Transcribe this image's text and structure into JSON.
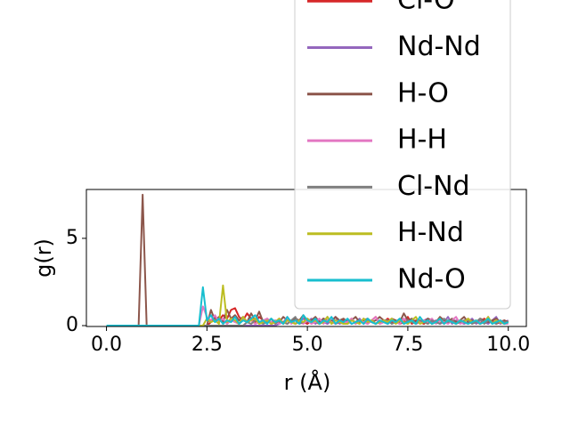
{
  "chart_data": {
    "type": "line",
    "xlabel": "r (Å)",
    "ylabel": "g(r)",
    "xlim": [
      -0.5,
      10.45
    ],
    "ylim": [
      -0.05,
      7.8
    ],
    "xticks": [
      {
        "value": 0,
        "label": "0.0"
      },
      {
        "value": 2.5,
        "label": "2.5"
      },
      {
        "value": 5,
        "label": "5.0"
      },
      {
        "value": 7.5,
        "label": "7.5"
      },
      {
        "value": 10,
        "label": "10.0"
      }
    ],
    "yticks": [
      0,
      5
    ],
    "legend": "upper right",
    "grid": false,
    "x": [
      0,
      0.1,
      0.2,
      0.3,
      0.4,
      0.5,
      0.6,
      0.7,
      0.8,
      0.9,
      1,
      1.1,
      1.2,
      1.3,
      1.4,
      1.5,
      1.6,
      1.7,
      1.8,
      1.9,
      2,
      2.1,
      2.2,
      2.3,
      2.4,
      2.5,
      2.6,
      2.7,
      2.8,
      2.9,
      3,
      3.1,
      3.2,
      3.3,
      3.4,
      3.5,
      3.6,
      3.7,
      3.8,
      3.9,
      4,
      4.1,
      4.2,
      4.3,
      4.4,
      4.5,
      4.6,
      4.7,
      4.8,
      4.9,
      5,
      5.1,
      5.2,
      5.3,
      5.4,
      5.5,
      5.6,
      5.7,
      5.8,
      5.9,
      6,
      6.1,
      6.2,
      6.3,
      6.4,
      6.5,
      6.6,
      6.7,
      6.8,
      6.9,
      7,
      7.1,
      7.2,
      7.3,
      7.4,
      7.5,
      7.6,
      7.7,
      7.8,
      7.9,
      8,
      8.1,
      8.2,
      8.3,
      8.4,
      8.5,
      8.6,
      8.7,
      8.8,
      8.9,
      9,
      9.1,
      9.2,
      9.3,
      9.4,
      9.5,
      9.6,
      9.7,
      9.8,
      9.9,
      10
    ],
    "series": [
      {
        "name": "Cl-O",
        "color": "#d62728",
        "values": [
          0,
          0,
          0,
          0,
          0,
          0,
          0,
          0,
          0,
          0,
          0,
          0,
          0,
          0,
          0,
          0,
          0,
          0,
          0,
          0,
          0,
          0,
          0,
          0,
          0,
          0,
          0.2,
          0.5,
          0.3,
          0.6,
          0.4,
          0.9,
          1.0,
          0.5,
          0.3,
          0.7,
          0.4,
          0.2,
          0.5,
          0.3,
          0.3,
          0.1,
          0.2,
          0.4,
          0.1,
          0.3,
          0.2,
          0.1,
          0.3,
          0.2,
          0.1,
          0.3,
          0.2,
          0.1,
          0.4,
          0.2,
          0.3,
          0.1,
          0.2,
          0.3,
          0.2,
          0.4,
          0.1,
          0.3,
          0.2,
          0.1,
          0.3,
          0.5,
          0.1,
          0.2,
          0.4,
          0.2,
          0.3,
          0.1,
          0.2,
          0.5,
          0.1,
          0.3,
          0.2,
          0.1,
          0.3,
          0.1,
          0.2,
          0.4,
          0.1,
          0.3,
          0.2,
          0.1,
          0.3,
          0.2,
          0.1,
          0.3,
          0.2,
          0.1,
          0.4,
          0.2,
          0.3,
          0.1,
          0.2,
          0.3,
          0.2
        ]
      },
      {
        "name": "Nd-Nd",
        "color": "#9467bd",
        "values": [
          0,
          0,
          0,
          0,
          0,
          0,
          0,
          0,
          0,
          0,
          0,
          0,
          0,
          0,
          0,
          0,
          0,
          0,
          0,
          0,
          0,
          0,
          0,
          0,
          0,
          0,
          0,
          0,
          0,
          0,
          0,
          0,
          0,
          0,
          0,
          0,
          0,
          0,
          0,
          0,
          0,
          0,
          0,
          0.1,
          0.2,
          0.1,
          0.3,
          0.1,
          0.2,
          0.4,
          0.2,
          0.4,
          0.1,
          0.3,
          0.2,
          0.1,
          0.3,
          0.5,
          0.1,
          0.2,
          0.3,
          0.1,
          0.2,
          0.4,
          0.1,
          0.3,
          0.2,
          0.1,
          0.3,
          0.2,
          0.1,
          0.3,
          0.2,
          0.1,
          0.4,
          0.2,
          0.3,
          0.1,
          0.2,
          0.3,
          0.4,
          0.2,
          0.3,
          0.1,
          0.2,
          0.5,
          0.1,
          0.3,
          0.2,
          0.1,
          0.2,
          0.4,
          0.1,
          0.3,
          0.2,
          0.1,
          0.3,
          0.5,
          0.1,
          0.2,
          0.3
        ]
      },
      {
        "name": "H-O",
        "color": "#8c564b",
        "values": [
          0,
          0,
          0,
          0,
          0,
          0,
          0,
          0,
          0,
          7.5,
          0,
          0,
          0,
          0,
          0,
          0,
          0,
          0,
          0,
          0,
          0,
          0,
          0,
          0,
          0,
          0,
          0.9,
          0.3,
          0.5,
          0.2,
          0.9,
          0.4,
          0.6,
          0.3,
          0.5,
          0.2,
          0.7,
          0.3,
          0.8,
          0.2,
          0.4,
          0.1,
          0.3,
          0.2,
          0.5,
          0.3,
          0.2,
          0.4,
          0.3,
          0.6,
          0.2,
          0.3,
          0.5,
          0.2,
          0.4,
          0.3,
          0.2,
          0.5,
          0.3,
          0.4,
          0.2,
          0.3,
          0.5,
          0.2,
          0.3,
          0.4,
          0.2,
          0.3,
          0.5,
          0.3,
          0.2,
          0.4,
          0.3,
          0.2,
          0.7,
          0.3,
          0.4,
          0.2,
          0.3,
          0.2,
          0.4,
          0.3,
          0.2,
          0.5,
          0.3,
          0.2,
          0.4,
          0.2,
          0.3,
          0.5,
          0.2,
          0.3,
          0.2,
          0.4,
          0.3,
          0.2,
          0.3,
          0.4,
          0.2,
          0.3,
          0.2
        ]
      },
      {
        "name": "H-H",
        "color": "#e377c2",
        "values": [
          0,
          0,
          0,
          0,
          0,
          0,
          0,
          0,
          0,
          0,
          0,
          0,
          0,
          0,
          0,
          0,
          0,
          0,
          0,
          0,
          0,
          0,
          0,
          0,
          1.1,
          0.5,
          0.3,
          0.6,
          0.2,
          0.4,
          0.1,
          0.3,
          0.2,
          0.1,
          0.4,
          0.2,
          0.3,
          0.1,
          0.2,
          0.3,
          0.4,
          0.2,
          0.3,
          0.1,
          0.2,
          0.5,
          0.1,
          0.3,
          0.2,
          0.1,
          0.3,
          0.1,
          0.2,
          0.4,
          0.1,
          0.3,
          0.2,
          0.1,
          0.3,
          0.2,
          0.2,
          0.4,
          0.1,
          0.3,
          0.2,
          0.1,
          0.3,
          0.5,
          0.1,
          0.2,
          0.1,
          0.3,
          0.2,
          0.1,
          0.4,
          0.2,
          0.3,
          0.1,
          0.2,
          0.3,
          0.2,
          0.4,
          0.1,
          0.3,
          0.2,
          0.1,
          0.3,
          0.5,
          0.1,
          0.2,
          0.4,
          0.2,
          0.3,
          0.1,
          0.2,
          0.5,
          0.1,
          0.3,
          0.2,
          0.1,
          0.1
        ]
      },
      {
        "name": "Cl-Nd",
        "color": "#7f7f7f",
        "values": [
          0,
          0,
          0,
          0,
          0,
          0,
          0,
          0,
          0,
          0,
          0,
          0,
          0,
          0,
          0,
          0,
          0,
          0,
          0,
          0,
          0,
          0,
          0,
          0,
          0,
          0,
          0,
          0,
          0,
          0,
          0,
          0,
          0,
          0,
          0,
          0.2,
          0.1,
          0.3,
          0.2,
          0.1,
          0.2,
          0.4,
          0.1,
          0.3,
          0.2,
          0.1,
          0.3,
          0.5,
          0.1,
          0.2,
          0.4,
          0.2,
          0.3,
          0.1,
          0.2,
          0.5,
          0.1,
          0.3,
          0.2,
          0.1,
          0.1,
          0.3,
          0.2,
          0.1,
          0.4,
          0.2,
          0.3,
          0.1,
          0.2,
          0.3,
          0.3,
          0.1,
          0.2,
          0.4,
          0.1,
          0.3,
          0.2,
          0.1,
          0.3,
          0.2,
          0.1,
          0.3,
          0.2,
          0.1,
          0.4,
          0.2,
          0.3,
          0.1,
          0.2,
          0.3,
          0.3,
          0.1,
          0.2,
          0.4,
          0.1,
          0.3,
          0.2,
          0.1,
          0.3,
          0.2,
          0.2
        ]
      },
      {
        "name": "H-Nd",
        "color": "#bcbd22",
        "values": [
          0,
          0,
          0,
          0,
          0,
          0,
          0,
          0,
          0,
          0,
          0,
          0,
          0,
          0,
          0,
          0,
          0,
          0,
          0,
          0,
          0,
          0,
          0,
          0,
          0,
          0.4,
          0.2,
          0.3,
          0.1,
          2.3,
          0.2,
          0.4,
          0.3,
          0.1,
          0.5,
          0.2,
          0.3,
          0.4,
          0.1,
          0.2,
          0.3,
          0.1,
          0.2,
          0.4,
          0.1,
          0.3,
          0.2,
          0.1,
          0.3,
          0.2,
          0.4,
          0.2,
          0.3,
          0.1,
          0.2,
          0.5,
          0.1,
          0.3,
          0.2,
          0.1,
          0.1,
          0.3,
          0.2,
          0.1,
          0.4,
          0.2,
          0.3,
          0.1,
          0.2,
          0.3,
          0.2,
          0.4,
          0.1,
          0.3,
          0.2,
          0.1,
          0.3,
          0.5,
          0.1,
          0.2,
          0.3,
          0.1,
          0.2,
          0.4,
          0.1,
          0.3,
          0.2,
          0.1,
          0.3,
          0.2,
          0.4,
          0.2,
          0.3,
          0.1,
          0.2,
          0.5,
          0.1,
          0.3,
          0.2,
          0.1,
          0.2
        ]
      },
      {
        "name": "Nd-O",
        "color": "#17becf",
        "values": [
          0,
          0,
          0,
          0,
          0,
          0,
          0,
          0,
          0,
          0,
          0,
          0,
          0,
          0,
          0,
          0,
          0,
          0,
          0,
          0,
          0,
          0,
          0,
          0,
          2.2,
          0.3,
          0.6,
          0.2,
          0.4,
          0.1,
          0.3,
          0.2,
          0.5,
          0.1,
          0.3,
          0.2,
          0.4,
          0.6,
          0.2,
          0.3,
          0.1,
          0.4,
          0.2,
          0.3,
          0.1,
          0.5,
          0.2,
          0.3,
          0.1,
          0.6,
          0.3,
          0.2,
          0.4,
          0.1,
          0.3,
          0.2,
          0.5,
          0.1,
          0.3,
          0.2,
          0.4,
          0.1,
          0.2,
          0.3,
          0.1,
          0.4,
          0.2,
          0.1,
          0.3,
          0.2,
          0.1,
          0.3,
          0.2,
          0.4,
          0.1,
          0.2,
          0.3,
          0.1,
          0.5,
          0.2,
          0.3,
          0.1,
          0.2,
          0.4,
          0.1,
          0.3,
          0.2,
          0.1,
          0.3,
          0.2,
          0.1,
          0.2,
          0.3,
          0.1,
          0.2,
          0.4,
          0.1,
          0.2,
          0.3,
          0.1,
          0.2
        ]
      }
    ]
  }
}
